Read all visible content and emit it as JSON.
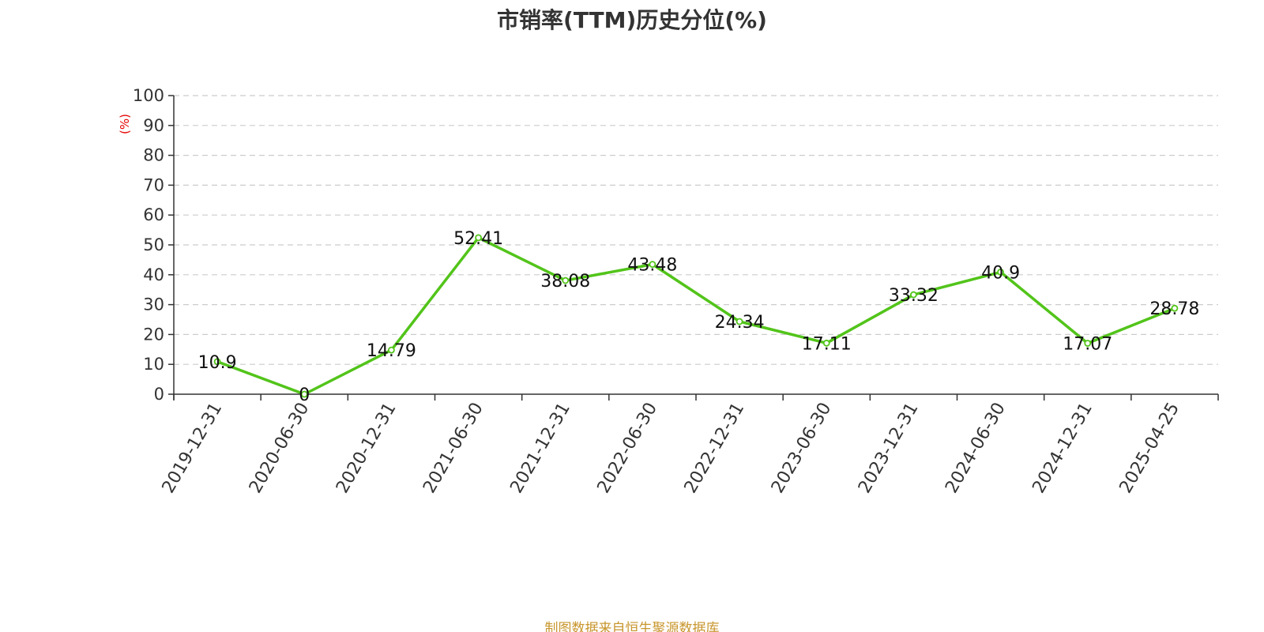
{
  "chart_data": {
    "type": "line",
    "title": "市销率(TTM)历史分位(%)",
    "ylabel": "(%)",
    "xlabel": "",
    "ylim": [
      0,
      100
    ],
    "yticks": [
      0,
      10,
      20,
      30,
      40,
      50,
      60,
      70,
      80,
      90,
      100
    ],
    "grid": "horizontal-dashed",
    "categories": [
      "2019-12-31",
      "2020-06-30",
      "2020-12-31",
      "2021-06-30",
      "2021-12-31",
      "2022-06-30",
      "2022-12-31",
      "2023-06-30",
      "2023-12-31",
      "2024-06-30",
      "2024-12-31",
      "2025-04-25"
    ],
    "series": [
      {
        "values": [
          10.9,
          0,
          14.79,
          52.41,
          38.08,
          43.48,
          24.34,
          17.11,
          33.32,
          40.9,
          17.07,
          28.78
        ],
        "labels": [
          "10.9",
          "0",
          "14.79",
          "52.41",
          "38.08",
          "43.48",
          "24.34",
          "17.11",
          "33.32",
          "40.9",
          "17.07",
          "28.78"
        ]
      }
    ],
    "colors": {
      "line": "#52c41a",
      "ylabel": "#e60000",
      "grid": "#cccccc",
      "axis": "#333333"
    }
  },
  "source": "制图数据来自恒生聚源数据库"
}
